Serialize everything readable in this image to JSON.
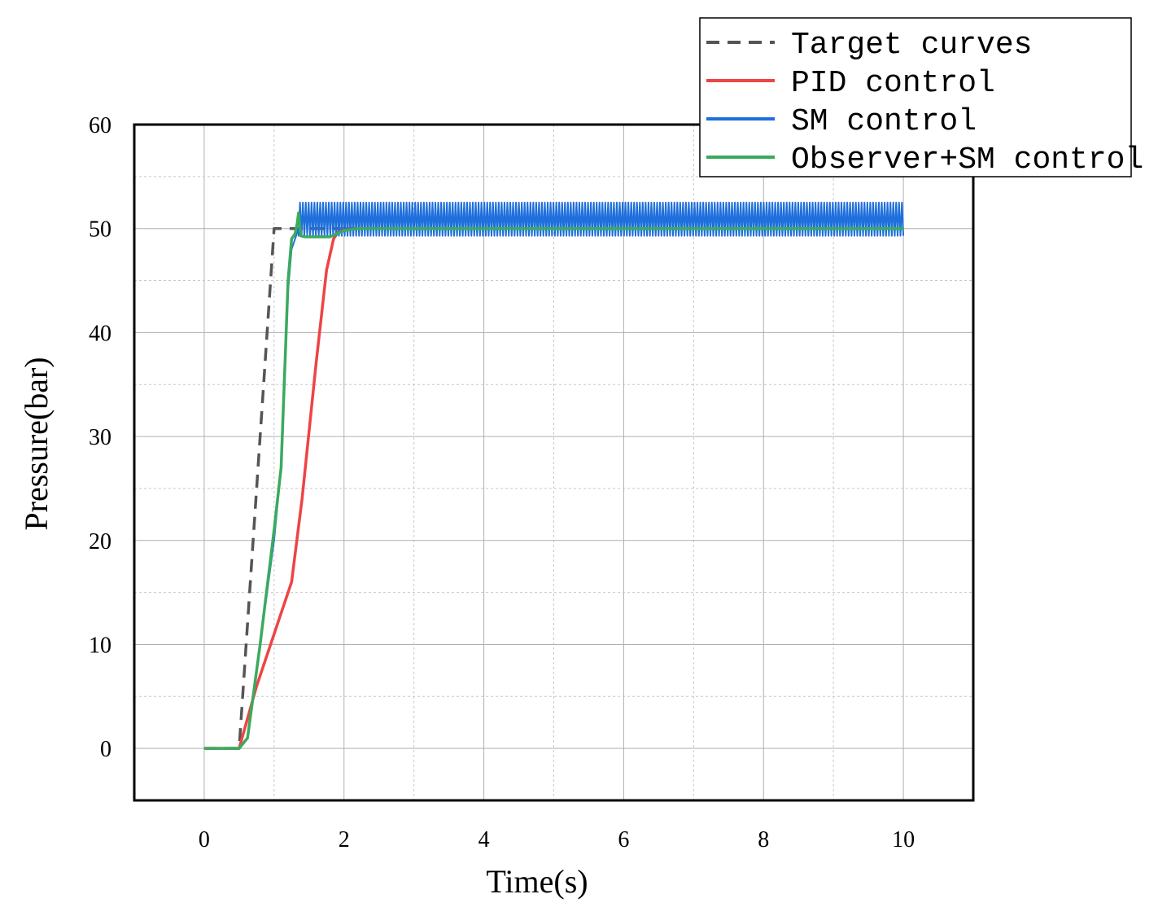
{
  "chart_data": {
    "type": "line",
    "xlabel": "Time(s)",
    "ylabel": "Pressure(bar)",
    "xlim": [
      -1,
      11
    ],
    "ylim": [
      -5,
      60
    ],
    "x_ticks": [
      0,
      2,
      4,
      6,
      8,
      10
    ],
    "x_tick_labels": [
      "0",
      "2",
      "4",
      "6",
      "8",
      "10"
    ],
    "y_ticks": [
      0,
      10,
      20,
      30,
      40,
      50,
      60
    ],
    "y_tick_labels": [
      "0",
      "10",
      "20",
      "30",
      "40",
      "50",
      "60"
    ],
    "grid": true,
    "legend_position": "top-right",
    "series": [
      {
        "name": "Target curves",
        "color": "#555555",
        "style": "dashed",
        "x": [
          0,
          0.5,
          1.0,
          10
        ],
        "y": [
          0,
          0,
          50,
          50
        ]
      },
      {
        "name": "PID control",
        "color": "#ee4444",
        "style": "solid",
        "x": [
          0,
          0.5,
          0.75,
          1.0,
          1.25,
          1.4,
          1.6,
          1.75,
          1.85,
          1.95,
          2.1,
          10
        ],
        "y": [
          0,
          0,
          6,
          11,
          16,
          24,
          37,
          46,
          49,
          50,
          50,
          50
        ]
      },
      {
        "name": "SM control",
        "color": "#1f6fdc",
        "style": "solid",
        "oscillation": {
          "from": 1.35,
          "to": 10,
          "low": 49.3,
          "high": 52.5
        },
        "x": [
          0,
          0.5,
          0.62,
          0.8,
          1.0,
          1.1,
          1.12,
          1.16,
          1.2,
          1.25,
          1.3,
          1.35
        ],
        "y": [
          0,
          0,
          1,
          10,
          20,
          27,
          30,
          37,
          44,
          48,
          49,
          50
        ]
      },
      {
        "name": "Observer+SM control",
        "color": "#3aaa5e",
        "style": "solid",
        "x": [
          0,
          0.5,
          0.62,
          0.8,
          1.0,
          1.1,
          1.2,
          1.25,
          1.3,
          1.33,
          1.35,
          1.38,
          1.45,
          1.8,
          2.0,
          2.2,
          10
        ],
        "y": [
          0,
          0,
          1,
          10,
          21,
          27,
          45,
          49,
          49.5,
          50.5,
          51.5,
          49.3,
          49.2,
          49.2,
          49.8,
          50,
          50
        ]
      }
    ]
  }
}
